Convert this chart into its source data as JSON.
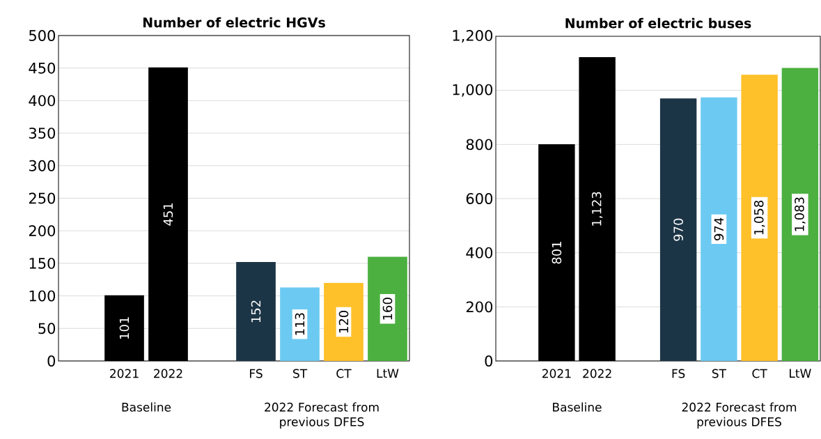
{
  "chart_data": [
    {
      "type": "bar",
      "title": "Number of electric HGVs",
      "categories": [
        null,
        "2021",
        "2022",
        null,
        "FS",
        "ST",
        "CT",
        "LtW"
      ],
      "values": [
        null,
        101,
        451,
        null,
        152,
        113,
        120,
        160
      ],
      "colors": [
        null,
        "#000000",
        "#000000",
        null,
        "#1c3546",
        "#6ccaf2",
        "#ffc12a",
        "#4cb040"
      ],
      "value_labels": [
        null,
        "101",
        "451",
        null,
        "152",
        "113",
        "120",
        "160"
      ],
      "ylim": [
        0,
        500
      ],
      "yticks": [
        0,
        50,
        100,
        150,
        200,
        250,
        300,
        350,
        400,
        450,
        500
      ],
      "grid": "y",
      "annotations": [
        "Baseline",
        "2022 Forecast from previous DFES"
      ]
    },
    {
      "type": "bar",
      "title": "Number of electric buses",
      "categories": [
        null,
        "2021",
        "2022",
        null,
        "FS",
        "ST",
        "CT",
        "LtW"
      ],
      "values": [
        null,
        801,
        1123,
        null,
        970,
        974,
        1058,
        1083
      ],
      "colors": [
        null,
        "#000000",
        "#000000",
        null,
        "#1c3546",
        "#6ccaf2",
        "#ffc12a",
        "#4cb040"
      ],
      "value_labels": [
        null,
        "801",
        "1,123",
        null,
        "970",
        "974",
        "1,058",
        "1,083"
      ],
      "ylim": [
        0,
        1200
      ],
      "yticks": [
        0,
        200,
        400,
        600,
        800,
        {
          "value": 1000,
          "label": "1,000"
        },
        {
          "value": 1200,
          "label": "1,200"
        }
      ],
      "grid": "y",
      "annotations": [
        "Baseline",
        "2022 Forecast from previous DFES"
      ]
    }
  ]
}
